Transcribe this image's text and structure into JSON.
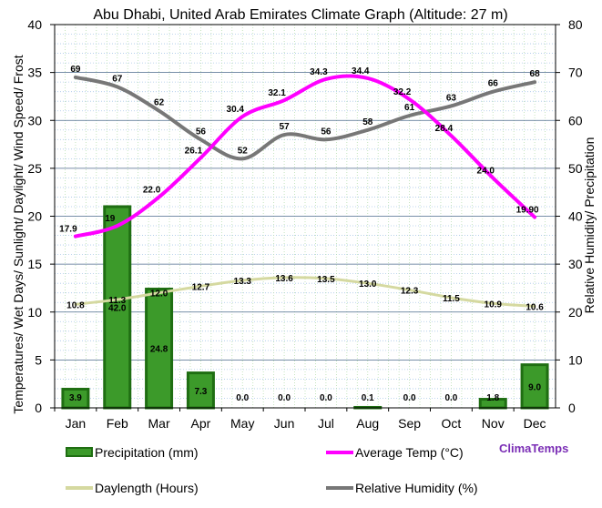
{
  "chart_data": {
    "type": "bar",
    "title": "Abu Dhabi, United Arab Emirates Climate Graph (Altitude: 27 m)",
    "ylabel_left": "Temperatures/ Wet Days/ Sunlight/ Daylight/ Wind Speed/ Frost",
    "ylabel_right": "Relative Humidity/ Precipitation",
    "categories": [
      "Jan",
      "Feb",
      "Mar",
      "Apr",
      "May",
      "Jun",
      "Jul",
      "Aug",
      "Sep",
      "Oct",
      "Nov",
      "Dec"
    ],
    "y_left_range": [
      0,
      40
    ],
    "y_right_range": [
      0,
      80
    ],
    "y_left_ticks": [
      "0",
      "5",
      "10",
      "15",
      "20",
      "25",
      "30",
      "35",
      "40"
    ],
    "y_right_ticks": [
      "0",
      "10",
      "20",
      "30",
      "40",
      "50",
      "60",
      "70",
      "80"
    ],
    "grid": true,
    "series": [
      {
        "name": "Precipitation (mm)",
        "type": "bar",
        "axis": "right",
        "color": "#3c9a2a",
        "values": [
          3.9,
          42.0,
          24.8,
          7.3,
          0.0,
          0.0,
          0.0,
          0.1,
          0.0,
          0.0,
          1.8,
          9.0
        ],
        "labels": [
          "3.9",
          "42.0",
          "24.8",
          "7.3",
          "0.0",
          "0.0",
          "0.0",
          "0.1",
          "0.0",
          "0.0",
          "1.8",
          "9.0"
        ]
      },
      {
        "name": "Average Temp (°C)",
        "type": "line",
        "axis": "left",
        "color": "#ff00ff",
        "values": [
          17.9,
          19,
          22.0,
          26.1,
          30.4,
          32.1,
          34.3,
          34.4,
          32.2,
          28.4,
          24.0,
          19.9
        ],
        "labels": [
          "17.9",
          "19",
          "22.0",
          "26.1",
          "30.4",
          "32.1",
          "34.3",
          "34.4",
          "32.2",
          "28.4",
          "24.0",
          "19.90"
        ]
      },
      {
        "name": "Daylength (Hours)",
        "type": "line",
        "axis": "left",
        "color": "#d5d9a0",
        "values": [
          10.8,
          11.3,
          12.0,
          12.7,
          13.3,
          13.6,
          13.5,
          13.0,
          12.3,
          11.5,
          10.9,
          10.6
        ],
        "labels": [
          "10.8",
          "11.3",
          "12.0",
          "12.7",
          "13.3",
          "13.6",
          "13.5",
          "13.0",
          "12.3",
          "11.5",
          "10.9",
          "10.6"
        ]
      },
      {
        "name": "Relative Humidity (%)",
        "type": "line",
        "axis": "right",
        "color": "#777777",
        "values": [
          69,
          67,
          62,
          56,
          52,
          57,
          56,
          58,
          61,
          63,
          66,
          68
        ],
        "labels": [
          "69",
          "67",
          "62",
          "56",
          "52",
          "57",
          "56",
          "58",
          "61",
          "63",
          "66",
          "68"
        ]
      }
    ],
    "legend": [
      {
        "label": "Precipitation (mm)",
        "kind": "bar",
        "color": "#3c9a2a"
      },
      {
        "label": "Average Temp (°C)",
        "kind": "line",
        "color": "#ff00ff"
      },
      {
        "label": "Daylength (Hours)",
        "kind": "line",
        "color": "#d5d9a0"
      },
      {
        "label": "Relative Humidity (%)",
        "kind": "line",
        "color": "#777777"
      }
    ],
    "legend_position": "bottom",
    "brand": "ClimaTemps"
  }
}
